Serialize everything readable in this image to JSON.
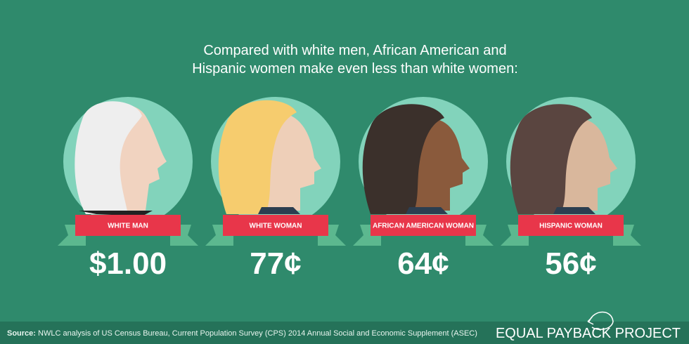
{
  "title": [
    "Compared with white men, African American and",
    "Hispanic women make even less than white women:"
  ],
  "people": [
    {
      "label": "WHITE MAN",
      "value": "$1.00"
    },
    {
      "label": "WHITE WOMAN",
      "value": "77¢"
    },
    {
      "label": "AFRICAN AMERICAN WOMAN",
      "value": "64¢"
    },
    {
      "label": "HISPANIC WOMAN",
      "value": "56¢"
    }
  ],
  "source": {
    "label": "Source:",
    "text": "NWLC analysis of US Census Bureau, Current Population Survey (CPS) 2014 Annual Social and Economic Supplement (ASEC)"
  },
  "brand": "EQUAL PAYBACK PROJECT"
}
